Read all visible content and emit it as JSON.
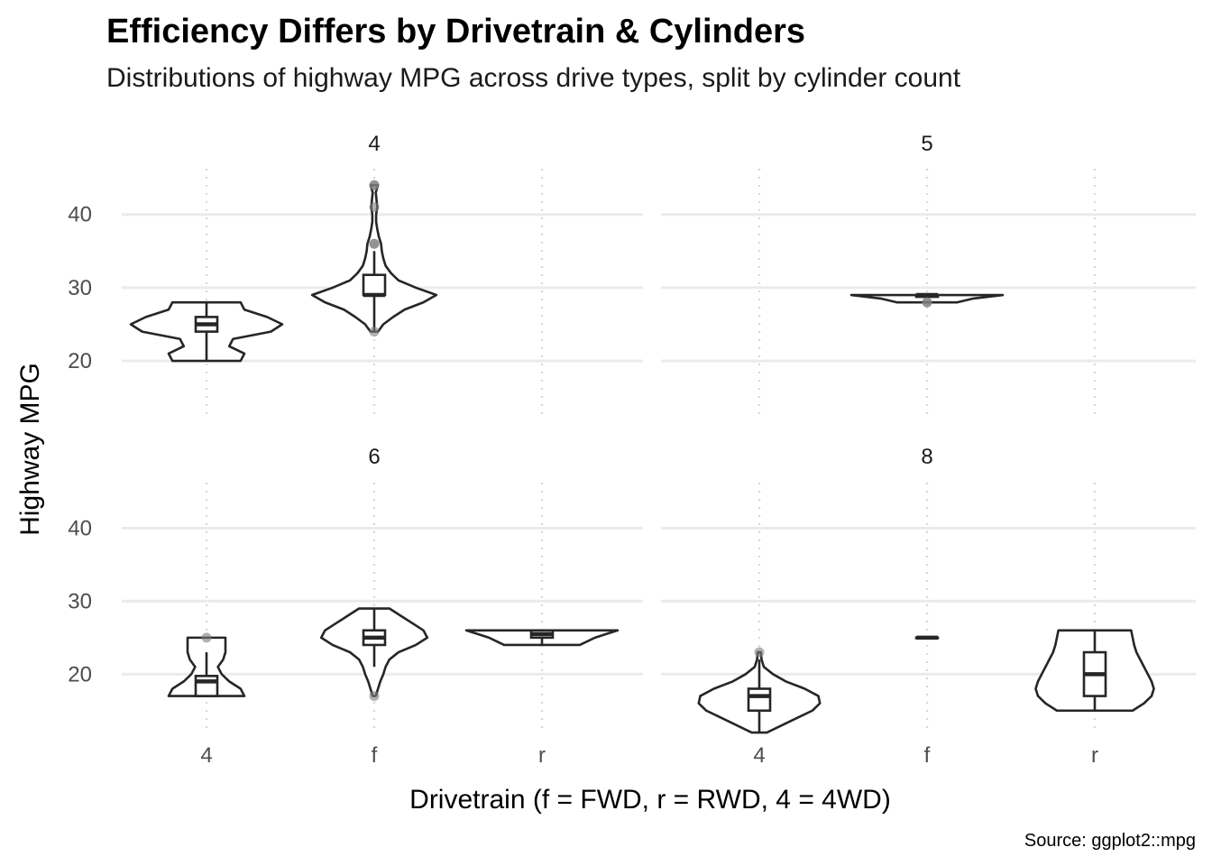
{
  "chart_data": {
    "type": "violin",
    "title": "Efficiency Differs by Drivetrain & Cylinders",
    "subtitle": "Distributions of highway MPG across drive types, split by cylinder count",
    "xlabel": "Drivetrain (f = FWD, r = RWD, 4 = 4WD)",
    "ylabel": "Highway MPG",
    "caption": "Source: ggplot2::mpg",
    "categories": [
      "4",
      "f",
      "r"
    ],
    "y_ticks": [
      20,
      30,
      40
    ],
    "ylim": [
      12.25,
      46.25
    ],
    "grid": true,
    "layout": "2x2 facets",
    "facets": [
      {
        "label": "4",
        "groups": [
          {
            "drv": "4",
            "min": 20,
            "max": 28,
            "q1": 24,
            "median": 25,
            "q3": 26,
            "whisker_low": 20,
            "whisker_high": 28,
            "outliers": [],
            "density": [
              [
                20,
                0.45
              ],
              [
                21,
                0.5
              ],
              [
                22,
                0.3
              ],
              [
                23,
                0.35
              ],
              [
                24,
                0.85
              ],
              [
                25,
                1.0
              ],
              [
                26,
                0.8
              ],
              [
                27,
                0.5
              ],
              [
                28,
                0.45
              ]
            ]
          },
          {
            "drv": "f",
            "min": 24,
            "max": 44,
            "q1": 29,
            "median": 29,
            "q3": 31.75,
            "whisker_low": 24,
            "whisker_high": 35,
            "outliers": [
              44,
              44,
              41,
              36,
              36,
              24
            ],
            "density": [
              [
                24,
                0.05
              ],
              [
                25,
                0.12
              ],
              [
                26,
                0.25
              ],
              [
                27,
                0.4
              ],
              [
                28,
                0.65
              ],
              [
                29,
                0.82
              ],
              [
                30,
                0.55
              ],
              [
                31,
                0.32
              ],
              [
                32,
                0.22
              ],
              [
                33,
                0.15
              ],
              [
                34,
                0.12
              ],
              [
                35,
                0.1
              ],
              [
                36,
                0.09
              ],
              [
                37,
                0.06
              ],
              [
                38,
                0.04
              ],
              [
                39,
                0.025
              ],
              [
                40,
                0.025
              ],
              [
                41,
                0.04
              ],
              [
                42,
                0.03
              ],
              [
                43,
                0.02
              ],
              [
                44,
                0.05
              ]
            ]
          }
        ]
      },
      {
        "label": "5",
        "groups": [
          {
            "drv": "f",
            "min": 28,
            "max": 29,
            "q1": 28.75,
            "median": 29,
            "q3": 29,
            "whisker_low": 28.75,
            "whisker_high": 29,
            "outliers": [
              28,
              28
            ],
            "density": [
              [
                28,
                0.4
              ],
              [
                28.5,
                0.6
              ],
              [
                29,
                1.0
              ]
            ]
          }
        ]
      },
      {
        "label": "6",
        "groups": [
          {
            "drv": "4",
            "min": 17,
            "max": 25,
            "q1": 17,
            "median": 19,
            "q3": 19.75,
            "whisker_low": 17,
            "whisker_high": 23,
            "outliers": [
              25
            ],
            "density": [
              [
                17,
                0.5
              ],
              [
                18,
                0.45
              ],
              [
                19,
                0.3
              ],
              [
                20,
                0.2
              ],
              [
                21,
                0.15
              ],
              [
                22,
                0.22
              ],
              [
                23,
                0.25
              ],
              [
                24,
                0.25
              ],
              [
                25,
                0.25
              ]
            ]
          },
          {
            "drv": "f",
            "min": 17,
            "max": 29,
            "q1": 24,
            "median": 25,
            "q3": 26,
            "whisker_low": 21,
            "whisker_high": 29,
            "outliers": [
              17
            ],
            "density": [
              [
                17,
                0.02
              ],
              [
                18,
                0.05
              ],
              [
                19,
                0.08
              ],
              [
                20,
                0.12
              ],
              [
                21,
                0.15
              ],
              [
                22,
                0.2
              ],
              [
                23,
                0.32
              ],
              [
                24,
                0.55
              ],
              [
                25,
                0.7
              ],
              [
                26,
                0.65
              ],
              [
                27,
                0.5
              ],
              [
                28,
                0.35
              ],
              [
                29,
                0.2
              ]
            ]
          },
          {
            "drv": "r",
            "min": 24,
            "max": 26,
            "q1": 25,
            "median": 25.5,
            "q3": 26,
            "whisker_low": 24,
            "whisker_high": 26,
            "outliers": [],
            "density": [
              [
                24,
                0.5
              ],
              [
                25,
                0.7
              ],
              [
                26,
                1.0
              ]
            ]
          }
        ]
      },
      {
        "label": "8",
        "groups": [
          {
            "drv": "4",
            "min": 12,
            "max": 23,
            "q1": 15,
            "median": 17,
            "q3": 18,
            "whisker_low": 12,
            "whisker_high": 22,
            "outliers": [
              23
            ],
            "density": [
              [
                12,
                0.1
              ],
              [
                13,
                0.3
              ],
              [
                14,
                0.5
              ],
              [
                15,
                0.7
              ],
              [
                16,
                0.8
              ],
              [
                17,
                0.78
              ],
              [
                18,
                0.6
              ],
              [
                19,
                0.35
              ],
              [
                20,
                0.18
              ],
              [
                21,
                0.06
              ],
              [
                22,
                0.03
              ],
              [
                23,
                0.02
              ]
            ]
          },
          {
            "drv": "f",
            "min": 25,
            "max": 25,
            "q1": 25,
            "median": 25,
            "q3": 25,
            "whisker_low": 25,
            "whisker_high": 25,
            "outliers": [],
            "density": []
          },
          {
            "drv": "r",
            "min": 15,
            "max": 26,
            "q1": 17,
            "median": 20,
            "q3": 23,
            "whisker_low": 15,
            "whisker_high": 26,
            "outliers": [],
            "density": [
              [
                15,
                0.5
              ],
              [
                16,
                0.65
              ],
              [
                17,
                0.75
              ],
              [
                18,
                0.78
              ],
              [
                19,
                0.75
              ],
              [
                20,
                0.7
              ],
              [
                21,
                0.65
              ],
              [
                22,
                0.6
              ],
              [
                23,
                0.55
              ],
              [
                24,
                0.52
              ],
              [
                25,
                0.5
              ],
              [
                26,
                0.48
              ]
            ]
          }
        ]
      }
    ]
  }
}
